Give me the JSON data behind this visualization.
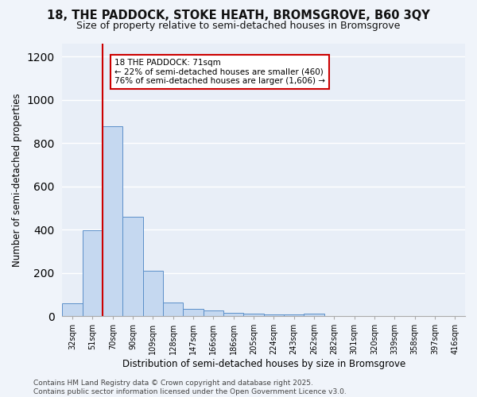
{
  "title1": "18, THE PADDOCK, STOKE HEATH, BROMSGROVE, B60 3QY",
  "title2": "Size of property relative to semi-detached houses in Bromsgrove",
  "xlabel": "Distribution of semi-detached houses by size in Bromsgrove",
  "ylabel": "Number of semi-detached properties",
  "categories": [
    "32sqm",
    "51sqm",
    "70sqm",
    "90sqm",
    "109sqm",
    "128sqm",
    "147sqm",
    "166sqm",
    "186sqm",
    "205sqm",
    "224sqm",
    "243sqm",
    "262sqm",
    "282sqm",
    "301sqm",
    "320sqm",
    "339sqm",
    "358sqm",
    "397sqm",
    "416sqm"
  ],
  "values": [
    60,
    397,
    878,
    460,
    208,
    63,
    35,
    25,
    15,
    10,
    8,
    6,
    10,
    0,
    0,
    0,
    0,
    0,
    0,
    0
  ],
  "bar_color": "#c5d8f0",
  "bar_edge_color": "#5b8fc9",
  "fig_background_color": "#f0f4fa",
  "ax_background_color": "#e8eef7",
  "grid_color": "#ffffff",
  "vline_color": "#cc0000",
  "vline_x_index": 2,
  "annotation_line1": "18 THE PADDOCK: 71sqm",
  "annotation_line2": "← 22% of semi-detached houses are smaller (460)",
  "annotation_line3": "76% of semi-detached houses are larger (1,606) →",
  "annotation_box_edge_color": "#cc0000",
  "footer": "Contains HM Land Registry data © Crown copyright and database right 2025.\nContains public sector information licensed under the Open Government Licence v3.0.",
  "ylim": [
    0,
    1260
  ],
  "yticks": [
    0,
    200,
    400,
    600,
    800,
    1000,
    1200
  ],
  "title_fontsize": 10.5,
  "subtitle_fontsize": 9,
  "axis_label_fontsize": 8.5,
  "tick_fontsize": 7,
  "annotation_fontsize": 7.5,
  "footer_fontsize": 6.5
}
